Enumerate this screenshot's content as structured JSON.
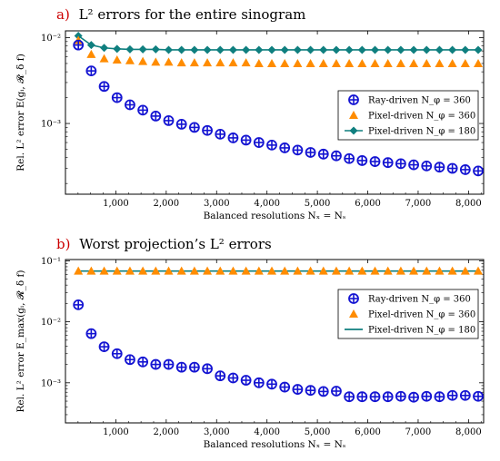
{
  "colors": {
    "ray": "#1414d2",
    "pixel360": "#ff8c00",
    "pixel180": "#0f7f7f",
    "title_tag": "#cc0000"
  },
  "chart_data": [
    {
      "type": "scatter",
      "tag": "a)",
      "title": "L² errors for the entire sinogram",
      "xlabel": "Balanced resolutions Nₓ = Nₛ",
      "ylabel": "Rel. L² error E(gᵢ, 𝓡_δ f)",
      "xlim": [
        0,
        8300
      ],
      "ylim": [
        0.00015,
        0.012
      ],
      "yscale": "log",
      "x_ticks": [
        1000,
        2000,
        3000,
        4000,
        5000,
        6000,
        7000,
        8000
      ],
      "x_tick_labels": [
        "1,000",
        "2,000",
        "3,000",
        "4,000",
        "5,000",
        "6,000",
        "7,000",
        "8,000"
      ],
      "y_ticks": [
        0.001,
        0.01
      ],
      "y_tick_labels": [
        "10⁻³",
        "10⁻²"
      ],
      "legend": {
        "position": "center-right",
        "entries": [
          {
            "series": "ray",
            "text": "Ray-driven N_φ = 360"
          },
          {
            "series": "pixel360",
            "text": "Pixel-driven N_φ = 360"
          },
          {
            "series": "pixel180",
            "text": "Pixel-driven N_φ = 180"
          }
        ]
      },
      "x": [
        256,
        512,
        768,
        1024,
        1280,
        1536,
        1792,
        2048,
        2304,
        2560,
        2816,
        3072,
        3328,
        3584,
        3840,
        4096,
        4352,
        4608,
        4864,
        5120,
        5376,
        5632,
        5888,
        6144,
        6400,
        6656,
        6912,
        7168,
        7424,
        7680,
        7936,
        8192
      ],
      "series": [
        {
          "key": "ray",
          "name": "Ray-driven N_φ = 360",
          "marker": "circle-plus",
          "values": [
            0.0082,
            0.0041,
            0.0027,
            0.002,
            0.00165,
            0.00143,
            0.00122,
            0.00108,
            0.00098,
            0.0009,
            0.00083,
            0.00075,
            0.00068,
            0.00064,
            0.0006,
            0.00056,
            0.00052,
            0.00049,
            0.00046,
            0.00044,
            0.00042,
            0.00039,
            0.00037,
            0.00036,
            0.00035,
            0.00034,
            0.00033,
            0.00032,
            0.00031,
            0.0003,
            0.00029,
            0.00028
          ]
        },
        {
          "key": "pixel360",
          "name": "Pixel-driven N_φ = 360",
          "marker": "triangle",
          "values": [
            0.0093,
            0.0064,
            0.0057,
            0.0055,
            0.0054,
            0.0053,
            0.0052,
            0.0052,
            0.0051,
            0.0051,
            0.0051,
            0.0051,
            0.0051,
            0.0051,
            0.005,
            0.005,
            0.005,
            0.005,
            0.005,
            0.005,
            0.005,
            0.005,
            0.005,
            0.005,
            0.005,
            0.005,
            0.005,
            0.005,
            0.005,
            0.005,
            0.005,
            0.005
          ]
        },
        {
          "key": "pixel180",
          "name": "Pixel-driven N_φ = 180",
          "marker": "diamond-line",
          "values": [
            0.0105,
            0.0082,
            0.0076,
            0.0074,
            0.0073,
            0.0073,
            0.0073,
            0.0072,
            0.0072,
            0.0072,
            0.0072,
            0.0072,
            0.0072,
            0.0072,
            0.0072,
            0.0072,
            0.0072,
            0.0072,
            0.0072,
            0.0072,
            0.0072,
            0.0072,
            0.0072,
            0.0072,
            0.0072,
            0.0072,
            0.0072,
            0.0072,
            0.0072,
            0.0072,
            0.0072,
            0.0072
          ]
        }
      ]
    },
    {
      "type": "scatter",
      "tag": "b)",
      "title": "Worst projection’s L² errors",
      "xlabel": "Balanced resolutions Nₓ = Nₛ",
      "ylabel": "Rel. L² error E_max(gᵢ, 𝓡_δ f)",
      "xlim": [
        0,
        8300
      ],
      "ylim": [
        0.00022,
        0.105
      ],
      "yscale": "log",
      "x_ticks": [
        1000,
        2000,
        3000,
        4000,
        5000,
        6000,
        7000,
        8000
      ],
      "x_tick_labels": [
        "1,000",
        "2,000",
        "3,000",
        "4,000",
        "5,000",
        "6,000",
        "7,000",
        "8,000"
      ],
      "y_ticks": [
        0.001,
        0.01,
        0.1
      ],
      "y_tick_labels": [
        "10⁻³",
        "10⁻²",
        "10⁻¹"
      ],
      "legend": {
        "position": "center-right",
        "entries": [
          {
            "series": "ray",
            "text": "Ray-driven N_φ = 360"
          },
          {
            "series": "pixel360",
            "text": "Pixel-driven N_φ = 360"
          },
          {
            "series": "pixel180",
            "text": "Pixel-driven N_φ = 180"
          }
        ]
      },
      "x": [
        256,
        512,
        768,
        1024,
        1280,
        1536,
        1792,
        2048,
        2304,
        2560,
        2816,
        3072,
        3328,
        3584,
        3840,
        4096,
        4352,
        4608,
        4864,
        5120,
        5376,
        5632,
        5888,
        6144,
        6400,
        6656,
        6912,
        7168,
        7424,
        7680,
        7936,
        8192
      ],
      "series": [
        {
          "key": "ray",
          "name": "Ray-driven N_φ = 360",
          "marker": "circle-plus",
          "values": [
            0.019,
            0.0064,
            0.0039,
            0.003,
            0.0024,
            0.0022,
            0.002,
            0.002,
            0.0018,
            0.0018,
            0.0017,
            0.0013,
            0.0012,
            0.0011,
            0.001,
            0.00095,
            0.00085,
            0.00078,
            0.00075,
            0.00072,
            0.00073,
            0.00059,
            0.00059,
            0.00059,
            0.00059,
            0.0006,
            0.00058,
            0.0006,
            0.00059,
            0.00062,
            0.00062,
            0.0006
          ]
        },
        {
          "key": "pixel360",
          "name": "Pixel-driven N_φ = 360",
          "marker": "triangle",
          "values": [
            0.068,
            0.068,
            0.068,
            0.068,
            0.068,
            0.068,
            0.068,
            0.068,
            0.068,
            0.068,
            0.068,
            0.068,
            0.068,
            0.068,
            0.068,
            0.068,
            0.068,
            0.068,
            0.068,
            0.068,
            0.068,
            0.068,
            0.068,
            0.068,
            0.068,
            0.068,
            0.068,
            0.068,
            0.068,
            0.068,
            0.068,
            0.068
          ]
        },
        {
          "key": "pixel180",
          "name": "Pixel-driven N_φ = 180",
          "marker": "line",
          "values": [
            0.068,
            0.068,
            0.068,
            0.068,
            0.068,
            0.068,
            0.068,
            0.068,
            0.068,
            0.068,
            0.068,
            0.068,
            0.068,
            0.068,
            0.068,
            0.068,
            0.068,
            0.068,
            0.068,
            0.068,
            0.068,
            0.068,
            0.068,
            0.068,
            0.068,
            0.068,
            0.068,
            0.068,
            0.068,
            0.068,
            0.068,
            0.068
          ]
        }
      ]
    }
  ]
}
